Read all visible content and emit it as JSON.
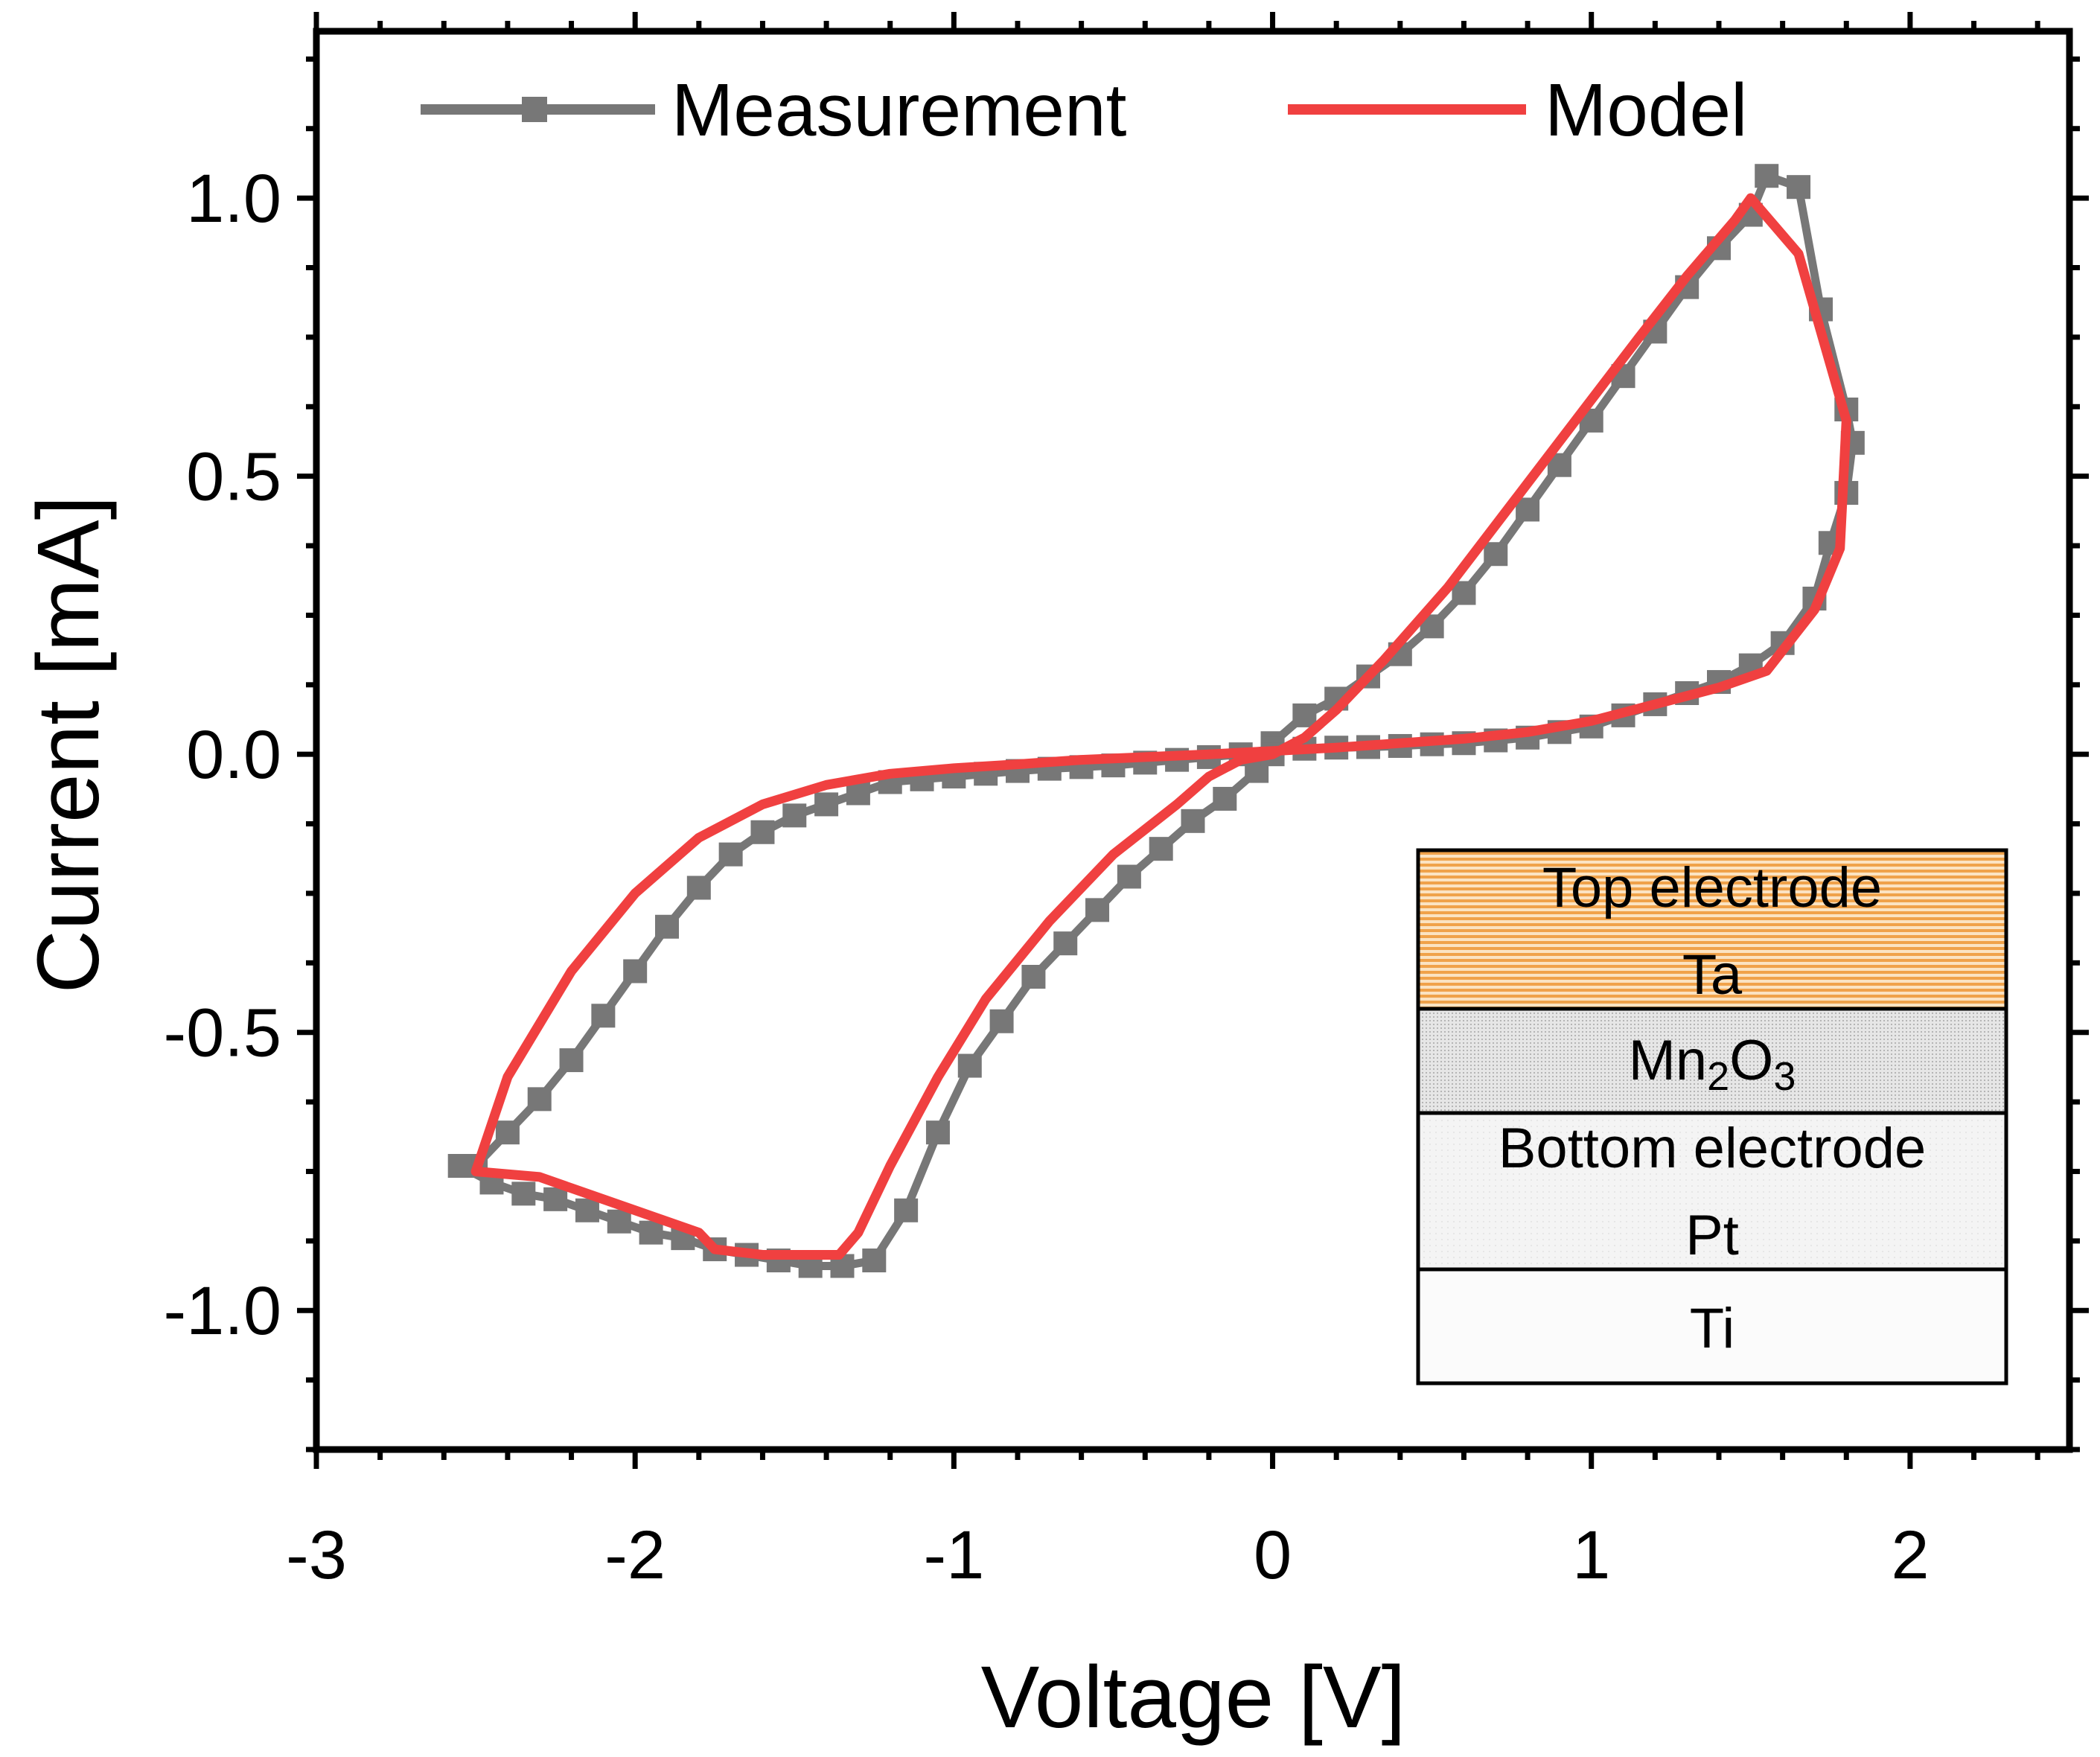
{
  "chart_data": {
    "type": "line",
    "title": "",
    "xlabel": "Voltage [V]",
    "ylabel": "Current [mA]",
    "xlim": [
      -3,
      2.5
    ],
    "ylim": [
      -1.25,
      1.3
    ],
    "xticks": [
      -3,
      -2,
      -1,
      0,
      1,
      2
    ],
    "xtick_labels": [
      "-3",
      "-2",
      "-1",
      "0",
      "1",
      "2"
    ],
    "yticks": [
      -1.0,
      -0.5,
      0.0,
      0.5,
      1.0
    ],
    "ytick_labels": [
      "-1.0",
      "-0.5",
      "0.0",
      "0.5",
      "1.0"
    ],
    "grid": false,
    "legend": {
      "position": "top",
      "entries": [
        "Measurement",
        "Model"
      ]
    },
    "series": [
      {
        "name": "Measurement",
        "color": "#777777",
        "marker": "square",
        "x": [
          0.0,
          0.1,
          0.2,
          0.3,
          0.4,
          0.5,
          0.6,
          0.7,
          0.8,
          0.9,
          1.0,
          1.1,
          1.2,
          1.3,
          1.4,
          1.5,
          1.55,
          1.65,
          1.72,
          1.8,
          1.82,
          1.8,
          1.75,
          1.7,
          1.6,
          1.5,
          1.4,
          1.3,
          1.2,
          1.1,
          1.0,
          0.9,
          0.8,
          0.7,
          0.6,
          0.5,
          0.4,
          0.3,
          0.2,
          0.1,
          0.0,
          -0.1,
          -0.2,
          -0.3,
          -0.4,
          -0.5,
          -0.6,
          -0.7,
          -0.8,
          -0.9,
          -1.0,
          -1.1,
          -1.2,
          -1.3,
          -1.4,
          -1.5,
          -1.6,
          -1.7,
          -1.8,
          -1.9,
          -2.0,
          -2.1,
          -2.2,
          -2.3,
          -2.4,
          -2.5,
          -2.55,
          -2.45,
          -2.35,
          -2.25,
          -2.15,
          -2.05,
          -1.95,
          -1.85,
          -1.75,
          -1.65,
          -1.55,
          -1.45,
          -1.35,
          -1.25,
          -1.15,
          -1.05,
          -0.95,
          -0.85,
          -0.75,
          -0.65,
          -0.55,
          -0.45,
          -0.35,
          -0.25,
          -0.15,
          -0.05,
          0.0
        ],
        "y": [
          0.02,
          0.07,
          0.1,
          0.14,
          0.18,
          0.23,
          0.29,
          0.36,
          0.44,
          0.52,
          0.6,
          0.68,
          0.76,
          0.84,
          0.91,
          0.97,
          1.04,
          1.02,
          0.8,
          0.62,
          0.56,
          0.47,
          0.38,
          0.28,
          0.2,
          0.16,
          0.13,
          0.11,
          0.09,
          0.07,
          0.05,
          0.04,
          0.03,
          0.025,
          0.02,
          0.018,
          0.015,
          0.013,
          0.012,
          0.01,
          0.01,
          0.0,
          -0.005,
          -0.01,
          -0.015,
          -0.02,
          -0.023,
          -0.026,
          -0.03,
          -0.035,
          -0.04,
          -0.045,
          -0.05,
          -0.07,
          -0.09,
          -0.11,
          -0.14,
          -0.18,
          -0.24,
          -0.31,
          -0.39,
          -0.47,
          -0.55,
          -0.62,
          -0.68,
          -0.74,
          -0.74,
          -0.77,
          -0.79,
          -0.8,
          -0.82,
          -0.84,
          -0.86,
          -0.87,
          -0.89,
          -0.9,
          -0.91,
          -0.92,
          -0.92,
          -0.91,
          -0.82,
          -0.68,
          -0.56,
          -0.48,
          -0.4,
          -0.34,
          -0.28,
          -0.22,
          -0.17,
          -0.12,
          -0.08,
          -0.03,
          0.0
        ]
      },
      {
        "name": "Model",
        "color": "#f04040",
        "marker": "none",
        "x": [
          0.0,
          0.1,
          0.2,
          0.35,
          0.55,
          0.75,
          0.95,
          1.15,
          1.3,
          1.45,
          1.5,
          1.65,
          1.75,
          1.8,
          1.78,
          1.7,
          1.55,
          1.4,
          1.2,
          1.0,
          0.8,
          0.6,
          0.4,
          0.2,
          0.0,
          -0.2,
          -0.4,
          -0.6,
          -0.8,
          -1.0,
          -1.2,
          -1.4,
          -1.6,
          -1.8,
          -2.0,
          -2.2,
          -2.4,
          -2.5,
          -2.3,
          -2.2,
          -2.0,
          -1.8,
          -1.75,
          -1.6,
          -1.36,
          -1.3,
          -1.2,
          -1.05,
          -0.9,
          -0.7,
          -0.5,
          -0.3,
          -0.2,
          -0.1,
          0.0
        ],
        "y": [
          0.0,
          0.03,
          0.08,
          0.17,
          0.3,
          0.45,
          0.6,
          0.75,
          0.86,
          0.96,
          1.0,
          0.9,
          0.7,
          0.6,
          0.37,
          0.26,
          0.15,
          0.12,
          0.09,
          0.06,
          0.04,
          0.028,
          0.02,
          0.012,
          0.006,
          0.0,
          -0.005,
          -0.01,
          -0.018,
          -0.025,
          -0.035,
          -0.055,
          -0.09,
          -0.15,
          -0.25,
          -0.39,
          -0.58,
          -0.75,
          -0.76,
          -0.78,
          -0.82,
          -0.86,
          -0.89,
          -0.9,
          -0.9,
          -0.86,
          -0.74,
          -0.58,
          -0.44,
          -0.3,
          -0.18,
          -0.09,
          -0.04,
          -0.01,
          0.0
        ]
      }
    ]
  },
  "inset": {
    "layers": [
      {
        "lines": [
          "Top electrode",
          "Ta"
        ],
        "pattern": "orange-stripes"
      },
      {
        "lines": [
          "Mn",
          "2",
          "O",
          "3"
        ],
        "pattern": "fine-dots"
      },
      {
        "lines": [
          "Bottom electrode",
          "Pt"
        ],
        "pattern": "light-gray"
      },
      {
        "lines": [
          "Ti"
        ],
        "pattern": "very-light-dots"
      }
    ]
  }
}
